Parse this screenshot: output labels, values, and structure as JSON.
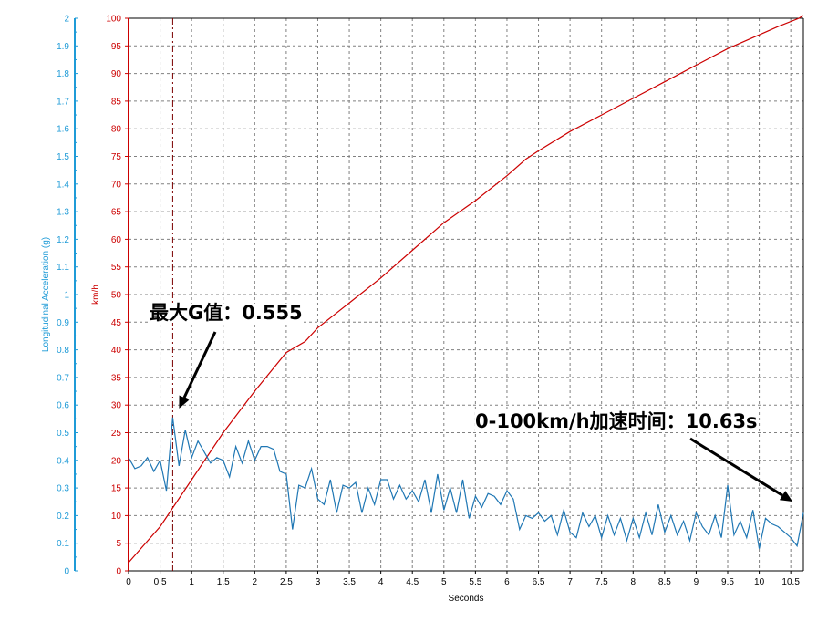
{
  "chart_data": {
    "type": "line",
    "xlabel": "Seconds",
    "ylabel_left": "Longitudinal Acceleration (g)",
    "ylabel_right": "km/h",
    "xlim": [
      0,
      10.7
    ],
    "ylim_accel": [
      0,
      2
    ],
    "ylim_speed": [
      0,
      100
    ],
    "x_ticks": [
      "0",
      "0.5",
      "1",
      "1.5",
      "2",
      "2.5",
      "3",
      "3.5",
      "4",
      "4.5",
      "5",
      "5.5",
      "6",
      "6.5",
      "7",
      "7.5",
      "8",
      "8.5",
      "9",
      "9.5",
      "10",
      "10.5"
    ],
    "accel_ticks": [
      "0",
      "0.1",
      "0.2",
      "0.3",
      "0.4",
      "0.5",
      "0.6",
      "0.7",
      "0.8",
      "0.9",
      "1",
      "1.1",
      "1.2",
      "1.3",
      "1.4",
      "1.5",
      "1.6",
      "1.7",
      "1.8",
      "1.9",
      "2"
    ],
    "speed_ticks": [
      "0",
      "5",
      "10",
      "15",
      "20",
      "25",
      "30",
      "35",
      "40",
      "45",
      "50",
      "55",
      "60",
      "65",
      "70",
      "75",
      "80",
      "85",
      "90",
      "95",
      "100"
    ],
    "grid": true,
    "colors": {
      "speed": "#cc0000",
      "accel": "#1f77b4",
      "accel_axis": "#1f9bd7",
      "grid": "#808080"
    },
    "series": [
      {
        "name": "km/h",
        "axis": "right",
        "x": [
          0,
          0.5,
          1.0,
          1.5,
          2.0,
          2.5,
          2.8,
          3.0,
          3.5,
          4.0,
          4.5,
          5.0,
          5.5,
          6.0,
          6.3,
          6.5,
          7.0,
          7.5,
          8.0,
          8.5,
          9.0,
          9.5,
          10.0,
          10.3,
          10.63,
          10.7
        ],
        "values": [
          1.5,
          8,
          16.5,
          25,
          32.5,
          39.5,
          41.5,
          44,
          48.5,
          53,
          58,
          63,
          67,
          71.5,
          74.5,
          76,
          79.5,
          82.5,
          85.5,
          88.5,
          91.5,
          94.5,
          97,
          98.5,
          100,
          100.5
        ]
      },
      {
        "name": "Longitudinal Acceleration (g)",
        "axis": "left",
        "x": [
          0,
          0.1,
          0.2,
          0.3,
          0.4,
          0.5,
          0.6,
          0.7,
          0.8,
          0.9,
          1.0,
          1.1,
          1.2,
          1.3,
          1.4,
          1.5,
          1.6,
          1.7,
          1.8,
          1.9,
          2.0,
          2.1,
          2.2,
          2.3,
          2.4,
          2.5,
          2.6,
          2.7,
          2.8,
          2.9,
          3.0,
          3.1,
          3.2,
          3.3,
          3.4,
          3.5,
          3.6,
          3.7,
          3.8,
          3.9,
          4.0,
          4.1,
          4.2,
          4.3,
          4.4,
          4.5,
          4.6,
          4.7,
          4.8,
          4.9,
          5.0,
          5.1,
          5.2,
          5.3,
          5.4,
          5.5,
          5.6,
          5.7,
          5.8,
          5.9,
          6.0,
          6.1,
          6.2,
          6.3,
          6.4,
          6.5,
          6.6,
          6.7,
          6.8,
          6.9,
          7.0,
          7.1,
          7.2,
          7.3,
          7.4,
          7.5,
          7.6,
          7.7,
          7.8,
          7.9,
          8.0,
          8.1,
          8.2,
          8.3,
          8.4,
          8.5,
          8.6,
          8.7,
          8.8,
          8.9,
          9.0,
          9.1,
          9.2,
          9.3,
          9.4,
          9.5,
          9.6,
          9.7,
          9.8,
          9.9,
          10.0,
          10.1,
          10.2,
          10.3,
          10.4,
          10.5,
          10.6,
          10.7
        ],
        "values": [
          0.41,
          0.37,
          0.38,
          0.41,
          0.36,
          0.4,
          0.29,
          0.555,
          0.38,
          0.51,
          0.41,
          0.47,
          0.43,
          0.39,
          0.41,
          0.4,
          0.34,
          0.45,
          0.39,
          0.47,
          0.4,
          0.45,
          0.45,
          0.44,
          0.36,
          0.35,
          0.15,
          0.31,
          0.3,
          0.37,
          0.26,
          0.24,
          0.33,
          0.21,
          0.31,
          0.3,
          0.32,
          0.21,
          0.3,
          0.24,
          0.33,
          0.33,
          0.26,
          0.31,
          0.26,
          0.29,
          0.25,
          0.33,
          0.21,
          0.35,
          0.22,
          0.3,
          0.21,
          0.33,
          0.19,
          0.27,
          0.23,
          0.28,
          0.27,
          0.24,
          0.29,
          0.26,
          0.15,
          0.2,
          0.19,
          0.21,
          0.18,
          0.2,
          0.13,
          0.22,
          0.14,
          0.12,
          0.21,
          0.16,
          0.2,
          0.12,
          0.2,
          0.13,
          0.19,
          0.11,
          0.19,
          0.12,
          0.21,
          0.13,
          0.24,
          0.14,
          0.2,
          0.13,
          0.18,
          0.11,
          0.21,
          0.16,
          0.13,
          0.2,
          0.12,
          0.31,
          0.13,
          0.18,
          0.12,
          0.22,
          0.08,
          0.19,
          0.17,
          0.16,
          0.14,
          0.12,
          0.09,
          0.21
        ]
      }
    ],
    "annotations": [
      {
        "text": "最大G值：0.555"
      },
      {
        "text": "0-100km/h加速时间：10.63s"
      }
    ]
  }
}
